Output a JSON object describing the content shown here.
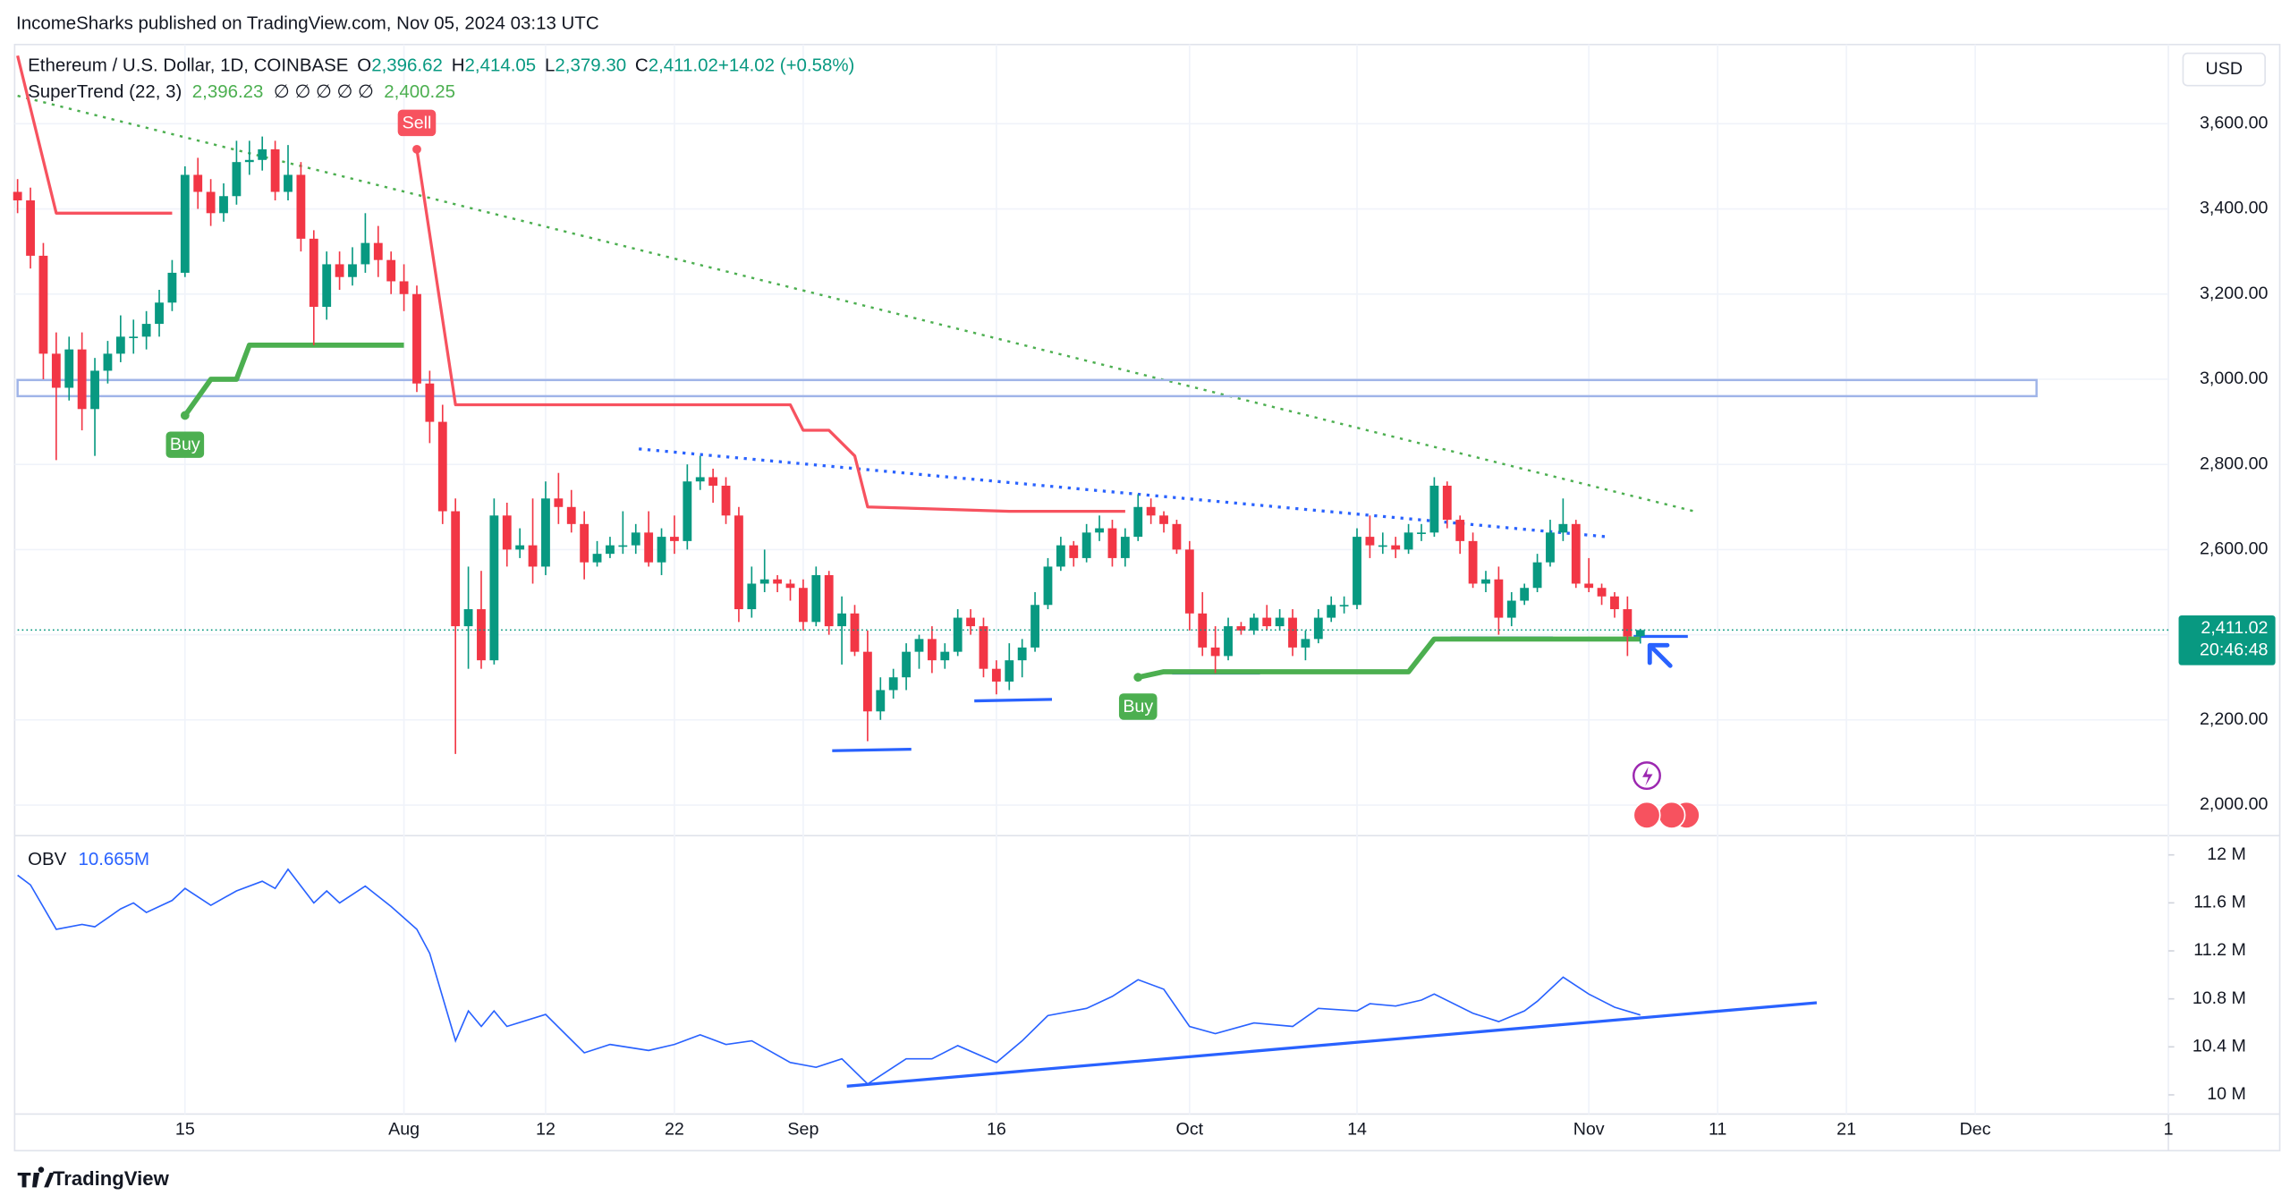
{
  "header": {
    "publisher": "IncomeSharks published on TradingView.com, Nov 05, 2024 03:13 UTC",
    "footer_logo": "TradingView"
  },
  "chart_data": [
    {
      "type": "candlestick",
      "symbol": "Ethereum / U.S. Dollar, 1D, COINBASE",
      "currency": "USD",
      "ohlc_legend": [
        {
          "label": "O",
          "value": "2,396.62"
        },
        {
          "label": "H",
          "value": "2,414.05"
        },
        {
          "label": "L",
          "value": "2,379.30"
        },
        {
          "label": "C",
          "value": "2,411.02"
        },
        {
          "label": "",
          "value": "+14.02 (+0.58%)"
        }
      ],
      "open": [
        3440,
        3420,
        3290,
        3060,
        2980,
        3070,
        2930,
        3020,
        3060,
        3100,
        3100,
        3130,
        3180,
        3250,
        3480,
        3440,
        3390,
        3430,
        3510,
        3515,
        3540,
        3440,
        3480,
        3330,
        3170,
        3270,
        3240,
        3270,
        3320,
        3280,
        3230,
        3200,
        2990,
        2900,
        2690,
        2420,
        2460,
        2340,
        2680,
        2600,
        2610,
        2560,
        2720,
        2700,
        2660,
        2570,
        2590,
        2610,
        2610,
        2640,
        2570,
        2630,
        2620,
        2760,
        2770,
        2750,
        2680,
        2460,
        2520,
        2530,
        2520,
        2510,
        2430,
        2540,
        2420,
        2450,
        2360,
        2220,
        2270,
        2300,
        2360,
        2390,
        2340,
        2360,
        2440,
        2420,
        2320,
        2290,
        2340,
        2370,
        2470,
        2560,
        2610,
        2580,
        2640,
        2650,
        2580,
        2630,
        2700,
        2680,
        2660,
        2600,
        2450,
        2370,
        2350,
        2420,
        2410,
        2440,
        2420,
        2440,
        2370,
        2390,
        2440,
        2470,
        2470,
        2630,
        2610,
        2610,
        2600,
        2640,
        2640,
        2750,
        2670,
        2620,
        2520,
        2530,
        2440,
        2480,
        2510,
        2570,
        2640,
        2660,
        2520,
        2510,
        2490,
        2460,
        2396.62
      ],
      "high": [
        3470,
        3450,
        3320,
        3110,
        3100,
        3110,
        3050,
        3090,
        3150,
        3140,
        3160,
        3210,
        3280,
        3500,
        3520,
        3470,
        3460,
        3560,
        3560,
        3570,
        3560,
        3550,
        3510,
        3350,
        3300,
        3300,
        3310,
        3390,
        3360,
        3300,
        3270,
        3220,
        3020,
        2940,
        2720,
        2560,
        2550,
        2720,
        2710,
        2650,
        2720,
        2760,
        2780,
        2740,
        2690,
        2620,
        2630,
        2690,
        2660,
        2690,
        2650,
        2680,
        2800,
        2820,
        2790,
        2770,
        2700,
        2560,
        2600,
        2540,
        2530,
        2530,
        2560,
        2550,
        2490,
        2470,
        2410,
        2300,
        2320,
        2380,
        2400,
        2420,
        2380,
        2460,
        2460,
        2440,
        2340,
        2380,
        2390,
        2500,
        2580,
        2630,
        2620,
        2660,
        2680,
        2670,
        2650,
        2730,
        2720,
        2690,
        2670,
        2620,
        2500,
        2420,
        2440,
        2430,
        2450,
        2470,
        2460,
        2460,
        2410,
        2460,
        2490,
        2490,
        2650,
        2680,
        2640,
        2630,
        2660,
        2660,
        2770,
        2760,
        2680,
        2640,
        2550,
        2560,
        2500,
        2520,
        2590,
        2670,
        2720,
        2670,
        2580,
        2520,
        2500,
        2490,
        2414.05
      ],
      "low": [
        3390,
        3260,
        3000,
        2810,
        2950,
        2880,
        2820,
        2990,
        3040,
        3060,
        3070,
        3100,
        3160,
        3240,
        3400,
        3360,
        3370,
        3410,
        3480,
        3490,
        3420,
        3420,
        3300,
        3080,
        3140,
        3210,
        3220,
        3250,
        3240,
        3200,
        3160,
        2970,
        2850,
        2660,
        2120,
        2320,
        2320,
        2330,
        2560,
        2580,
        2520,
        2540,
        2660,
        2640,
        2530,
        2560,
        2580,
        2590,
        2590,
        2560,
        2540,
        2590,
        2600,
        2740,
        2710,
        2660,
        2430,
        2440,
        2500,
        2500,
        2480,
        2410,
        2420,
        2400,
        2330,
        2350,
        2150,
        2200,
        2250,
        2270,
        2320,
        2310,
        2320,
        2350,
        2400,
        2300,
        2260,
        2270,
        2300,
        2360,
        2460,
        2550,
        2560,
        2570,
        2620,
        2560,
        2560,
        2620,
        2660,
        2640,
        2590,
        2410,
        2350,
        2310,
        2340,
        2400,
        2400,
        2410,
        2410,
        2350,
        2340,
        2380,
        2430,
        2450,
        2460,
        2580,
        2590,
        2580,
        2590,
        2620,
        2630,
        2650,
        2590,
        2510,
        2500,
        2400,
        2420,
        2470,
        2500,
        2560,
        2620,
        2510,
        2500,
        2470,
        2440,
        2350,
        2379.3
      ],
      "close": [
        3420,
        3290,
        3060,
        2980,
        3070,
        2930,
        3020,
        3060,
        3100,
        3100,
        3130,
        3180,
        3250,
        3480,
        3440,
        3390,
        3430,
        3510,
        3515,
        3540,
        3440,
        3480,
        3330,
        3170,
        3270,
        3240,
        3270,
        3320,
        3280,
        3230,
        3200,
        2990,
        2900,
        2690,
        2420,
        2460,
        2340,
        2680,
        2600,
        2610,
        2560,
        2720,
        2700,
        2660,
        2570,
        2590,
        2610,
        2610,
        2640,
        2570,
        2630,
        2620,
        2760,
        2770,
        2750,
        2680,
        2460,
        2520,
        2530,
        2520,
        2510,
        2430,
        2540,
        2420,
        2450,
        2360,
        2220,
        2270,
        2300,
        2360,
        2390,
        2340,
        2360,
        2440,
        2420,
        2320,
        2290,
        2340,
        2370,
        2470,
        2560,
        2610,
        2580,
        2640,
        2650,
        2580,
        2630,
        2700,
        2680,
        2660,
        2600,
        2450,
        2370,
        2350,
        2420,
        2410,
        2440,
        2420,
        2440,
        2370,
        2390,
        2440,
        2470,
        2470,
        2630,
        2610,
        2610,
        2600,
        2640,
        2640,
        2750,
        2670,
        2620,
        2520,
        2530,
        2440,
        2480,
        2510,
        2570,
        2640,
        2660,
        2520,
        2510,
        2490,
        2460,
        2396,
        2411.02
      ],
      "colors": {
        "up": "#089981",
        "down": "#f23645"
      },
      "xlim": [
        0,
        167
      ],
      "xticks": [
        {
          "value": 13,
          "label": "15"
        },
        {
          "value": 30,
          "label": "Aug"
        },
        {
          "value": 41,
          "label": "12"
        },
        {
          "value": 51,
          "label": "22"
        },
        {
          "value": 61,
          "label": "Sep"
        },
        {
          "value": 76,
          "label": "16"
        },
        {
          "value": 91,
          "label": "Oct"
        },
        {
          "value": 104,
          "label": "14"
        },
        {
          "value": 122,
          "label": "Nov"
        },
        {
          "value": 132,
          "label": "11"
        },
        {
          "value": 142,
          "label": "21"
        },
        {
          "value": 152,
          "label": "Dec"
        },
        {
          "value": 167,
          "label": "1"
        }
      ],
      "ylim": [
        1935,
        3786
      ],
      "yticks": [
        {
          "value": 3600,
          "label": "3,600.00"
        },
        {
          "value": 3400,
          "label": "3,400.00"
        },
        {
          "value": 3200,
          "label": "3,200.00"
        },
        {
          "value": 3000,
          "label": "3,000.00"
        },
        {
          "value": 2800,
          "label": "2,800.00"
        },
        {
          "value": 2600,
          "label": "2,600.00"
        },
        {
          "value": 2400,
          "label": "2,400.00"
        },
        {
          "value": 2200,
          "label": "2,200.00"
        },
        {
          "value": 2000,
          "label": "2,000.00"
        }
      ],
      "grid": true,
      "last_price": {
        "label": "2,411.02",
        "countdown": "20:46:48",
        "color": "#089981"
      },
      "supertrend": {
        "name": "SuperTrend (22, 3)",
        "legend_values": [
          "2,396.23",
          "∅ ∅ ∅ ∅ ∅",
          "2,400.25"
        ],
        "segments": [
          {
            "color": "#f7525f",
            "x": [
              0,
              3,
              12
            ],
            "values": [
              3760,
              3390,
              3390
            ]
          },
          {
            "color": "#4caf50",
            "x": [
              13,
              15,
              17,
              18,
              30
            ],
            "values": [
              2915,
              3000,
              3000,
              3080,
              3080
            ]
          },
          {
            "color": "#f7525f",
            "x": [
              31,
              34,
              60,
              61,
              63,
              65,
              66,
              77,
              86
            ],
            "values": [
              3540,
              2940,
              2940,
              2880,
              2880,
              2820,
              2700,
              2690,
              2690
            ]
          },
          {
            "color": "#4caf50",
            "x": [
              87,
              89,
              108,
              110,
              126
            ],
            "values": [
              2300,
              2313,
              2313,
              2390,
              2390
            ]
          }
        ],
        "signals": [
          {
            "text": "Buy",
            "x": 13,
            "value": 2915,
            "color": "#4caf50"
          },
          {
            "text": "Sell",
            "x": 31,
            "value": 3540,
            "color": "#f7525f"
          },
          {
            "text": "Buy",
            "x": 87,
            "value": 2300,
            "color": "#4caf50"
          }
        ]
      }
    },
    {
      "type": "line",
      "name": "OBV",
      "value_label": "10.665M",
      "color": "#2962ff",
      "x": [
        0,
        1,
        3,
        5,
        6,
        8,
        9,
        10,
        12,
        13,
        15,
        17,
        19,
        20,
        21,
        23,
        24,
        25,
        27,
        29,
        31,
        32,
        34,
        35,
        36,
        37,
        38,
        41,
        44,
        46,
        49,
        51,
        53,
        55,
        57,
        60,
        62,
        64,
        66,
        69,
        71,
        73,
        76,
        78,
        80,
        83,
        85,
        87,
        89,
        91,
        93,
        96,
        99,
        101,
        104,
        105,
        107,
        109,
        110,
        113,
        115,
        117,
        118,
        120,
        122,
        124,
        126
      ],
      "values": [
        11.83,
        11.75,
        11.38,
        11.42,
        11.4,
        11.55,
        11.6,
        11.52,
        11.62,
        11.72,
        11.58,
        11.7,
        11.78,
        11.72,
        11.88,
        11.6,
        11.7,
        11.6,
        11.74,
        11.57,
        11.38,
        11.18,
        10.45,
        10.7,
        10.57,
        10.7,
        10.57,
        10.67,
        10.35,
        10.42,
        10.37,
        10.42,
        10.5,
        10.42,
        10.45,
        10.27,
        10.23,
        10.3,
        10.09,
        10.3,
        10.3,
        10.41,
        10.27,
        10.45,
        10.66,
        10.72,
        10.82,
        10.96,
        10.88,
        10.57,
        10.51,
        10.6,
        10.57,
        10.72,
        10.7,
        10.76,
        10.74,
        10.79,
        10.84,
        10.68,
        10.61,
        10.7,
        10.78,
        10.98,
        10.84,
        10.73,
        10.665
      ],
      "ylim": [
        9.84,
        12.16
      ],
      "yticks": [
        {
          "value": 12,
          "label": "12 M"
        },
        {
          "value": 11.6,
          "label": "11.6 M"
        },
        {
          "value": 11.2,
          "label": "11.2 M"
        },
        {
          "value": 10.8,
          "label": "10.8 M"
        },
        {
          "value": 10.4,
          "label": "10.4 M"
        },
        {
          "value": 10,
          "label": "10 M"
        }
      ]
    }
  ]
}
